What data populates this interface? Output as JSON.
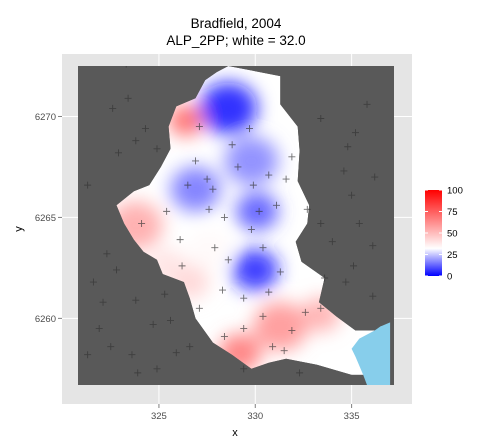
{
  "chart_data": {
    "type": "heatmap",
    "title": "Bradfield, 2004",
    "subtitle": "ALP_2PP; white = 32.0",
    "xlabel": "x",
    "ylabel": "y",
    "x_ticks": [
      325,
      330,
      335
    ],
    "y_ticks": [
      6260,
      6265,
      6270
    ],
    "x_tick_labels": [
      "325",
      "330",
      "335"
    ],
    "y_tick_labels": [
      "6260",
      "6265",
      "6270"
    ],
    "xlim": [
      320.8,
      337.2
    ],
    "ylim": [
      6256.7,
      6272.5
    ],
    "colorbar": {
      "min": 0,
      "max": 100,
      "ticks": [
        0,
        25,
        50,
        75,
        100
      ],
      "tick_labels": [
        "0",
        "25",
        "50",
        "75",
        "100"
      ],
      "low_color": "#0000ff",
      "mid_color": "#ffffff",
      "high_color": "#ff0000",
      "midpoint": 32.0
    },
    "colors": {
      "panel": "#595959",
      "plot_background": "#e5e5e5",
      "water": "#87ceeb",
      "marker": "#333333"
    },
    "hotspots": [
      {
        "x": 328.6,
        "y": 6270.4,
        "value": 2,
        "radius": 1.5
      },
      {
        "x": 330.0,
        "y": 6262.4,
        "value": 4,
        "radius": 1.2
      },
      {
        "x": 330.1,
        "y": 6265.3,
        "value": 10,
        "radius": 1.1
      },
      {
        "x": 326.9,
        "y": 6266.4,
        "value": 14,
        "radius": 1.3
      },
      {
        "x": 329.8,
        "y": 6267.8,
        "value": 16,
        "radius": 1.4
      },
      {
        "x": 326.4,
        "y": 6269.8,
        "value": 75,
        "radius": 0.9
      },
      {
        "x": 323.8,
        "y": 6264.6,
        "value": 56,
        "radius": 1.4
      },
      {
        "x": 331.3,
        "y": 6259.6,
        "value": 62,
        "radius": 1.4
      },
      {
        "x": 329.2,
        "y": 6258.3,
        "value": 70,
        "radius": 1.1
      },
      {
        "x": 333.4,
        "y": 6260.2,
        "value": 55,
        "radius": 1.0
      },
      {
        "x": 326.6,
        "y": 6261.8,
        "value": 44,
        "radius": 1.0
      },
      {
        "x": 327.6,
        "y": 6263.4,
        "value": 34,
        "radius": 1.0
      },
      {
        "x": 325.4,
        "y": 6262.6,
        "value": 40,
        "radius": 1.0
      }
    ],
    "region_outline": [
      [
        328.6,
        6272.5
      ],
      [
        331.3,
        6272.0
      ],
      [
        331.3,
        6270.6
      ],
      [
        332.2,
        6269.5
      ],
      [
        332.3,
        6268.3
      ],
      [
        332.2,
        6266.8
      ],
      [
        332.8,
        6265.6
      ],
      [
        332.7,
        6264.7
      ],
      [
        332.1,
        6263.8
      ],
      [
        332.4,
        6262.8
      ],
      [
        333.6,
        6262.0
      ],
      [
        333.3,
        6260.8
      ],
      [
        334.2,
        6260.1
      ],
      [
        335.2,
        6259.4
      ],
      [
        336.2,
        6259.4
      ],
      [
        336.8,
        6258.8
      ],
      [
        337.0,
        6257.2
      ],
      [
        335.0,
        6257.2
      ],
      [
        333.2,
        6257.7
      ],
      [
        331.6,
        6258.0
      ],
      [
        330.7,
        6257.8
      ],
      [
        329.8,
        6257.5
      ],
      [
        328.8,
        6258.2
      ],
      [
        327.8,
        6258.8
      ],
      [
        326.9,
        6260.0
      ],
      [
        326.6,
        6261.0
      ],
      [
        326.3,
        6261.8
      ],
      [
        325.2,
        6262.2
      ],
      [
        324.9,
        6262.9
      ],
      [
        324.2,
        6263.3
      ],
      [
        323.7,
        6263.9
      ],
      [
        323.2,
        6264.7
      ],
      [
        322.8,
        6265.6
      ],
      [
        323.7,
        6266.3
      ],
      [
        324.5,
        6266.6
      ],
      [
        325.1,
        6267.5
      ],
      [
        325.6,
        6268.4
      ],
      [
        325.5,
        6269.5
      ],
      [
        325.9,
        6270.5
      ],
      [
        326.9,
        6270.9
      ],
      [
        327.4,
        6271.8
      ],
      [
        328.0,
        6272.2
      ]
    ],
    "water_outline": [
      [
        336.2,
        6259.4
      ],
      [
        336.5,
        6259.6
      ],
      [
        337.0,
        6259.8
      ],
      [
        337.0,
        6256.7
      ],
      [
        335.8,
        6256.7
      ],
      [
        335.6,
        6257.2
      ],
      [
        335.2,
        6258.1
      ],
      [
        335.0,
        6258.5
      ],
      [
        335.4,
        6259.0
      ]
    ],
    "stations": [
      [
        321.3,
        6266.6
      ],
      [
        322.3,
        6263.2
      ],
      [
        322.8,
        6262.4
      ],
      [
        322.1,
        6260.8
      ],
      [
        321.9,
        6259.5
      ],
      [
        322.5,
        6258.6
      ],
      [
        323.6,
        6258.2
      ],
      [
        323.9,
        6257.3
      ],
      [
        324.9,
        6257.5
      ],
      [
        325.9,
        6258.3
      ],
      [
        324.7,
        6259.7
      ],
      [
        325.6,
        6259.9
      ],
      [
        323.8,
        6260.9
      ],
      [
        325.3,
        6261.2
      ],
      [
        324.9,
        6268.4
      ],
      [
        323.8,
        6268.8
      ],
      [
        322.9,
        6268.2
      ],
      [
        324.3,
        6269.4
      ],
      [
        321.6,
        6261.8
      ],
      [
        321.3,
        6258.2
      ],
      [
        326.5,
        6266.6
      ],
      [
        327.8,
        6266.4
      ],
      [
        326.9,
        6267.8
      ],
      [
        329.1,
        6267.5
      ],
      [
        329.9,
        6266.6
      ],
      [
        330.7,
        6267.1
      ],
      [
        331.6,
        6266.9
      ],
      [
        331.1,
        6265.6
      ],
      [
        330.2,
        6265.3
      ],
      [
        329.8,
        6264.4
      ],
      [
        328.4,
        6265.0
      ],
      [
        327.6,
        6265.4
      ],
      [
        325.4,
        6265.3
      ],
      [
        324.1,
        6264.7
      ],
      [
        326.1,
        6263.9
      ],
      [
        327.9,
        6263.5
      ],
      [
        328.6,
        6262.9
      ],
      [
        330.4,
        6263.5
      ],
      [
        331.3,
        6262.3
      ],
      [
        330.7,
        6261.3
      ],
      [
        329.4,
        6261.0
      ],
      [
        330.4,
        6260.1
      ],
      [
        331.9,
        6259.4
      ],
      [
        332.6,
        6260.3
      ],
      [
        333.4,
        6260.5
      ],
      [
        329.4,
        6259.5
      ],
      [
        328.4,
        6259.1
      ],
      [
        330.9,
        6258.6
      ],
      [
        331.5,
        6258.4
      ],
      [
        332.3,
        6257.3
      ],
      [
        329.4,
        6257.5
      ],
      [
        333.6,
        6262.0
      ],
      [
        333.4,
        6264.7
      ],
      [
        334.0,
        6263.8
      ],
      [
        335.4,
        6264.7
      ],
      [
        336.1,
        6263.6
      ],
      [
        335.1,
        6262.6
      ],
      [
        334.7,
        6261.8
      ],
      [
        336.1,
        6261.1
      ],
      [
        335.0,
        6266.1
      ],
      [
        334.6,
        6267.3
      ],
      [
        336.2,
        6267.0
      ],
      [
        334.8,
        6268.5
      ],
      [
        335.2,
        6269.2
      ],
      [
        335.8,
        6270.6
      ],
      [
        333.4,
        6269.9
      ],
      [
        331.9,
        6268.0
      ],
      [
        332.7,
        6265.4
      ],
      [
        323.3,
        6272.6
      ],
      [
        322.6,
        6270.4
      ],
      [
        323.4,
        6270.9
      ],
      [
        327.5,
        6266.9
      ],
      [
        328.8,
        6268.6
      ],
      [
        327.1,
        6269.5
      ],
      [
        329.7,
        6269.4
      ],
      [
        326.2,
        6262.6
      ],
      [
        327.1,
        6260.5
      ],
      [
        328.3,
        6261.4
      ],
      [
        326.6,
        6258.6
      ]
    ]
  }
}
